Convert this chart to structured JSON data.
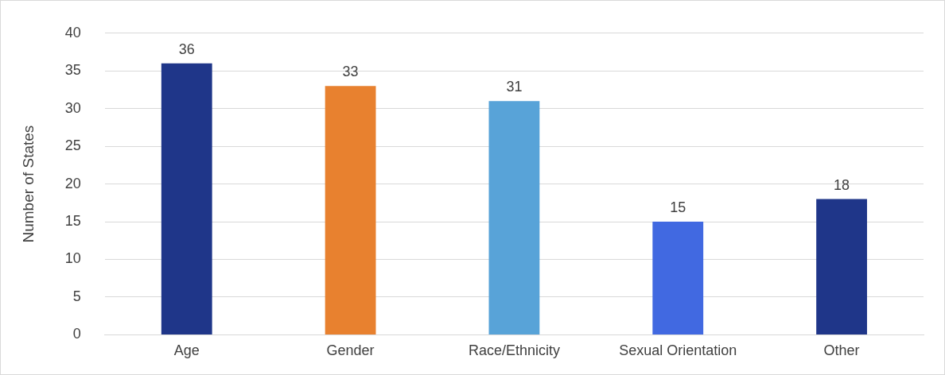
{
  "chart_data": {
    "type": "bar",
    "ylabel": "Number of States",
    "categories": [
      "Age",
      "Gender",
      "Race/Ethnicity",
      "Sexual Orientation",
      "Other"
    ],
    "values": [
      36,
      33,
      31,
      15,
      18
    ],
    "colors": [
      "#1f3689",
      "#e8812f",
      "#58a3d8",
      "#4169e1",
      "#1f3689"
    ],
    "ylim": [
      0,
      40
    ],
    "yticks": [
      0,
      5,
      10,
      15,
      20,
      25,
      30,
      35,
      40
    ],
    "grid": "y",
    "data_labels": true,
    "legend": false
  }
}
